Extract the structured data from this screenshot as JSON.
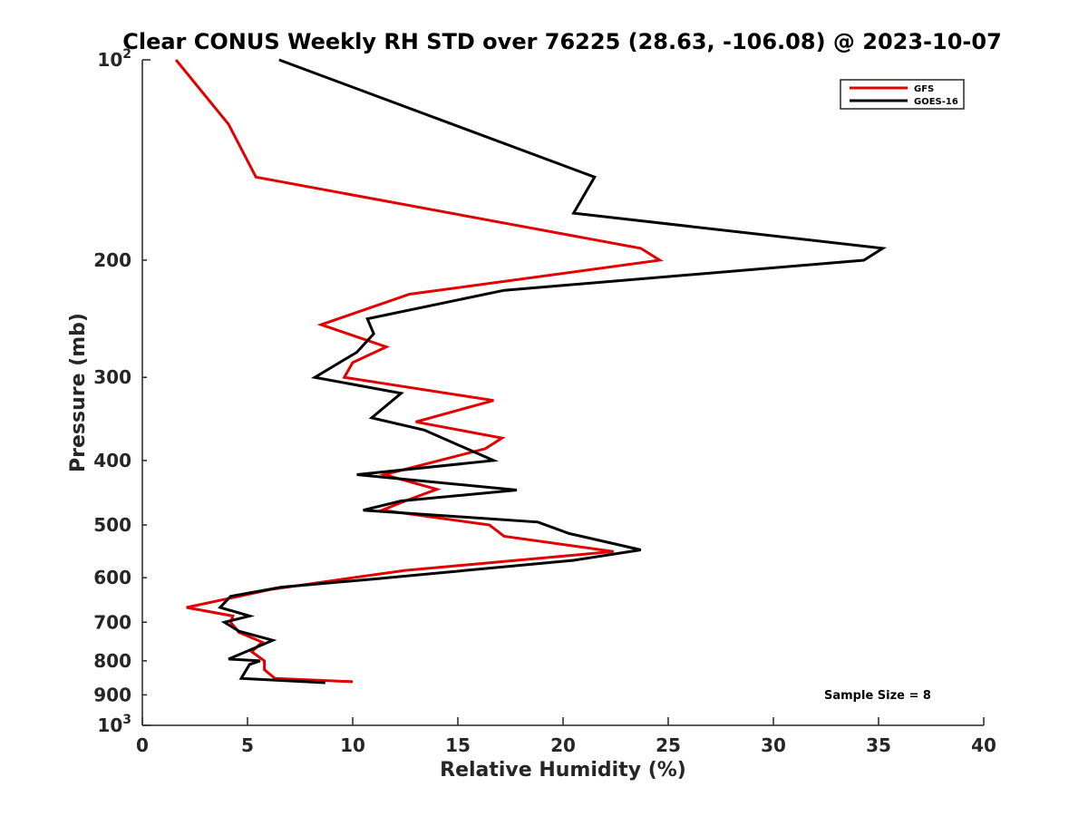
{
  "chart_data": {
    "type": "line",
    "title": "Clear CONUS Weekly RH STD over 76225 (28.63, -106.08) @ 2023-10-07",
    "xlabel": "Relative Humidity (%)",
    "ylabel": "Pressure (mb)",
    "xlim": [
      0,
      40
    ],
    "ylim": [
      100,
      1000
    ],
    "y_scale": "log",
    "y_reversed": true,
    "x_ticks": [
      {
        "value": 0,
        "label": "0"
      },
      {
        "value": 5,
        "label": "5"
      },
      {
        "value": 10,
        "label": "10"
      },
      {
        "value": 15,
        "label": "15"
      },
      {
        "value": 20,
        "label": "20"
      },
      {
        "value": 25,
        "label": "25"
      },
      {
        "value": 30,
        "label": "30"
      },
      {
        "value": 35,
        "label": "35"
      },
      {
        "value": 40,
        "label": "40"
      }
    ],
    "y_ticks": [
      {
        "value": 100,
        "label": "10",
        "sup": "2"
      },
      {
        "value": 200,
        "label": "200"
      },
      {
        "value": 300,
        "label": "300"
      },
      {
        "value": 400,
        "label": "400"
      },
      {
        "value": 500,
        "label": "500"
      },
      {
        "value": 600,
        "label": "600"
      },
      {
        "value": 700,
        "label": "700"
      },
      {
        "value": 800,
        "label": "800"
      },
      {
        "value": 900,
        "label": "900"
      },
      {
        "value": 1000,
        "label": "10",
        "sup": "3"
      }
    ],
    "grid": false,
    "legend_position": "top-right",
    "annotation": "Sample Size = 8",
    "series": [
      {
        "name": "GFS",
        "color": "#e00000",
        "points": [
          {
            "x": 1.6,
            "p": 100
          },
          {
            "x": 4.1,
            "p": 125
          },
          {
            "x": 5.4,
            "p": 150
          },
          {
            "x": 23.7,
            "p": 192
          },
          {
            "x": 24.6,
            "p": 200
          },
          {
            "x": 12.7,
            "p": 225
          },
          {
            "x": 8.5,
            "p": 250
          },
          {
            "x": 11.6,
            "p": 270
          },
          {
            "x": 10.0,
            "p": 285
          },
          {
            "x": 9.6,
            "p": 300
          },
          {
            "x": 16.7,
            "p": 325
          },
          {
            "x": 13.0,
            "p": 350
          },
          {
            "x": 17.1,
            "p": 370
          },
          {
            "x": 16.3,
            "p": 384
          },
          {
            "x": 11.5,
            "p": 420
          },
          {
            "x": 14.0,
            "p": 442
          },
          {
            "x": 12.5,
            "p": 460
          },
          {
            "x": 11.4,
            "p": 475
          },
          {
            "x": 16.5,
            "p": 500
          },
          {
            "x": 17.2,
            "p": 520
          },
          {
            "x": 22.4,
            "p": 548
          },
          {
            "x": 12.5,
            "p": 585
          },
          {
            "x": 10.0,
            "p": 600
          },
          {
            "x": 6.1,
            "p": 625
          },
          {
            "x": 2.1,
            "p": 665
          },
          {
            "x": 4.3,
            "p": 685
          },
          {
            "x": 4.2,
            "p": 700
          },
          {
            "x": 4.6,
            "p": 725
          },
          {
            "x": 5.7,
            "p": 750
          },
          {
            "x": 5.2,
            "p": 775
          },
          {
            "x": 5.8,
            "p": 800
          },
          {
            "x": 5.8,
            "p": 825
          },
          {
            "x": 6.3,
            "p": 850
          },
          {
            "x": 10.0,
            "p": 860
          }
        ]
      },
      {
        "name": "GOES-16",
        "color": "#000000",
        "points": [
          {
            "x": 6.5,
            "p": 100
          },
          {
            "x": 21.5,
            "p": 150
          },
          {
            "x": 20.5,
            "p": 170
          },
          {
            "x": 35.2,
            "p": 192
          },
          {
            "x": 34.3,
            "p": 200
          },
          {
            "x": 17.2,
            "p": 222
          },
          {
            "x": 10.7,
            "p": 245
          },
          {
            "x": 11.0,
            "p": 258
          },
          {
            "x": 10.2,
            "p": 275
          },
          {
            "x": 8.2,
            "p": 300
          },
          {
            "x": 12.3,
            "p": 317
          },
          {
            "x": 10.9,
            "p": 345
          },
          {
            "x": 13.4,
            "p": 360
          },
          {
            "x": 16.7,
            "p": 400
          },
          {
            "x": 10.2,
            "p": 420
          },
          {
            "x": 17.8,
            "p": 443
          },
          {
            "x": 12.3,
            "p": 460
          },
          {
            "x": 10.5,
            "p": 475
          },
          {
            "x": 18.8,
            "p": 495
          },
          {
            "x": 20.3,
            "p": 515
          },
          {
            "x": 23.7,
            "p": 545
          },
          {
            "x": 20.5,
            "p": 565
          },
          {
            "x": 11.2,
            "p": 602
          },
          {
            "x": 6.6,
            "p": 620
          },
          {
            "x": 4.2,
            "p": 640
          },
          {
            "x": 3.7,
            "p": 665
          },
          {
            "x": 5.1,
            "p": 685
          },
          {
            "x": 3.9,
            "p": 700
          },
          {
            "x": 4.6,
            "p": 722
          },
          {
            "x": 6.2,
            "p": 745
          },
          {
            "x": 4.1,
            "p": 795
          },
          {
            "x": 5.6,
            "p": 800
          },
          {
            "x": 5.1,
            "p": 810
          },
          {
            "x": 4.7,
            "p": 850
          },
          {
            "x": 8.7,
            "p": 863
          }
        ]
      }
    ]
  }
}
